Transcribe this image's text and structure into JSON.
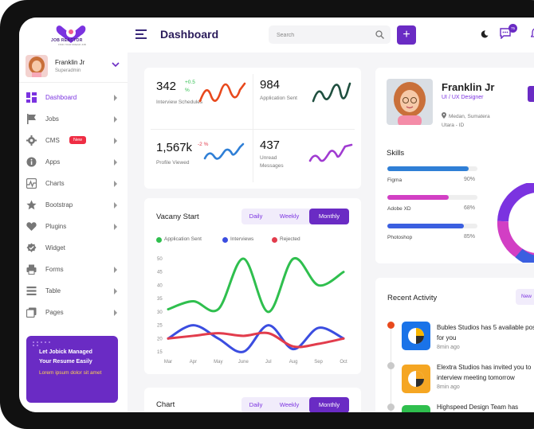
{
  "brand": {
    "logo_text": "JOB REACTOR",
    "logo_subtext": "FIND YOUR DREAM JOB",
    "accent": "#6a2bc4"
  },
  "sidebar_user": {
    "name": "Franklin Jr",
    "role": "Superadmin"
  },
  "nav": [
    {
      "label": "Dashboard",
      "icon": "dashboard-icon",
      "active": true
    },
    {
      "label": "Jobs",
      "icon": "flag-icon"
    },
    {
      "label": "CMS",
      "icon": "gear-icon",
      "badge": "New"
    },
    {
      "label": "Apps",
      "icon": "info-icon"
    },
    {
      "label": "Charts",
      "icon": "chart-icon"
    },
    {
      "label": "Bootstrap",
      "icon": "star-icon"
    },
    {
      "label": "Plugins",
      "icon": "heart-icon"
    },
    {
      "label": "Widget",
      "icon": "check-badge-icon"
    },
    {
      "label": "Forms",
      "icon": "printer-icon"
    },
    {
      "label": "Table",
      "icon": "table-icon"
    },
    {
      "label": "Pages",
      "icon": "pages-icon"
    }
  ],
  "promo": {
    "title": "Let Jobick Managed Your Resume Easily",
    "text": "Lorem ipsum dolor sit amet"
  },
  "header": {
    "title": "Dashboard",
    "search_placeholder": "Search",
    "notification_count": "75"
  },
  "stats": [
    {
      "value": "342",
      "change": "+0.5 %",
      "label": "Interview Schedules",
      "trend_color": "#e8491d"
    },
    {
      "value": "984",
      "change": "",
      "label": "Application Sent",
      "trend_color": "#1f4f3f"
    },
    {
      "value": "1,567k",
      "change": "-2 %",
      "label": "Profile Viewed",
      "trend_color": "#2f7fd6"
    },
    {
      "value": "437",
      "change": "",
      "label": "Unread Messages",
      "trend_color": "#a03bd1"
    }
  ],
  "vacancy": {
    "title": "Vacany Start",
    "tabs": [
      "Daily",
      "Weekly",
      "Monthly"
    ],
    "active_tab": "Monthly"
  },
  "chart_data": {
    "type": "line",
    "categories": [
      "Mar",
      "Apr",
      "May",
      "June",
      "Jul",
      "Aug",
      "Sep",
      "Oct"
    ],
    "ylim": [
      15,
      50
    ],
    "yticks": [
      50,
      45,
      40,
      35,
      30,
      25,
      20,
      15
    ],
    "series": [
      {
        "name": "Application Sent",
        "color": "#2fbf4e",
        "values": [
          31,
          34,
          31,
          50,
          30,
          50,
          40,
          45
        ]
      },
      {
        "name": "Interviews",
        "color": "#3b4de0",
        "values": [
          20,
          25,
          20,
          15,
          25,
          16,
          24,
          20
        ]
      },
      {
        "name": "Rejected",
        "color": "#e23c4c",
        "values": [
          20,
          21,
          22,
          21,
          22,
          17,
          18,
          20
        ]
      }
    ]
  },
  "chart2": {
    "title": "Chart",
    "tabs": [
      "Daily",
      "Weekly",
      "Monthly"
    ],
    "active_tab": "Monthly"
  },
  "profile": {
    "name": "Franklin Jr",
    "role": "UI / UX Designer",
    "location": "Medan, Sumatera Utara - ID",
    "skills_title": "Skills",
    "skills": [
      {
        "name": "Figma",
        "percent": 90,
        "color": "#2f7fd6",
        "label": "90%"
      },
      {
        "name": "Adobe XD",
        "percent": 68,
        "color": "#d23fc4",
        "label": "68%"
      },
      {
        "name": "Photoshop",
        "percent": 85,
        "color": "#3b5fe0",
        "label": "85%"
      }
    ]
  },
  "activity": {
    "title": "Recent Activity",
    "filter_label": "New",
    "items": [
      {
        "text": "Bubles Studios has 5 available positions for you",
        "time": "8min ago",
        "dot": "#e8491d"
      },
      {
        "text": "Elextra Studios has invited you to interview meeting tomorrow",
        "time": "8min ago",
        "dot": "#c9c9c9"
      },
      {
        "text": "Highspeed Design Team has",
        "time": "",
        "dot": "#c9c9c9"
      }
    ]
  }
}
